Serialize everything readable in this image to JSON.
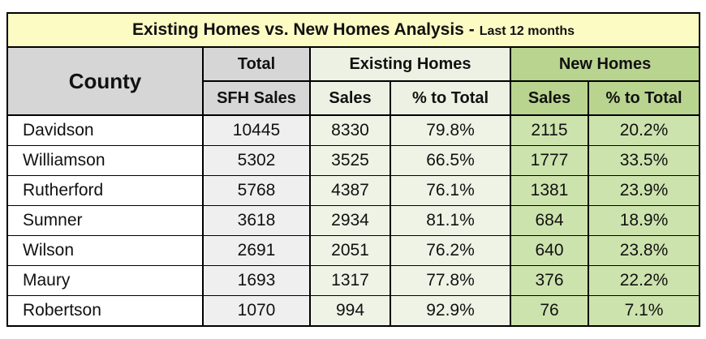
{
  "title": "Existing Homes vs. New Homes Analysis -",
  "title_suffix": "Last 12 months",
  "headers": {
    "county": "County",
    "total_line1": "Total",
    "total_line2": "SFH Sales",
    "existing_group": "Existing Homes",
    "new_group": "New Homes",
    "sales": "Sales",
    "pct_total": "% to Total"
  },
  "colors": {
    "title_bg": "#fdfbc4",
    "existing_bg": "#eff3e6",
    "new_bg": "#cde3ad",
    "header_gray": "#d6d6d6"
  },
  "chart_data": {
    "type": "table",
    "columns": [
      "County",
      "Total SFH Sales",
      "Existing Sales",
      "Existing % to Total",
      "New Sales",
      "New % to Total"
    ],
    "rows": [
      {
        "county": "Davidson",
        "total": "10445",
        "existing_sales": "8330",
        "existing_pct": "79.8%",
        "new_sales": "2115",
        "new_pct": "20.2%"
      },
      {
        "county": "Williamson",
        "total": "5302",
        "existing_sales": "3525",
        "existing_pct": "66.5%",
        "new_sales": "1777",
        "new_pct": "33.5%"
      },
      {
        "county": "Rutherford",
        "total": "5768",
        "existing_sales": "4387",
        "existing_pct": "76.1%",
        "new_sales": "1381",
        "new_pct": "23.9%"
      },
      {
        "county": "Sumner",
        "total": "3618",
        "existing_sales": "2934",
        "existing_pct": "81.1%",
        "new_sales": "684",
        "new_pct": "18.9%"
      },
      {
        "county": "Wilson",
        "total": "2691",
        "existing_sales": "2051",
        "existing_pct": "76.2%",
        "new_sales": "640",
        "new_pct": "23.8%"
      },
      {
        "county": "Maury",
        "total": "1693",
        "existing_sales": "1317",
        "existing_pct": "77.8%",
        "new_sales": "376",
        "new_pct": "22.2%"
      },
      {
        "county": "Robertson",
        "total": "1070",
        "existing_sales": "994",
        "existing_pct": "92.9%",
        "new_sales": "76",
        "new_pct": "7.1%"
      }
    ]
  }
}
